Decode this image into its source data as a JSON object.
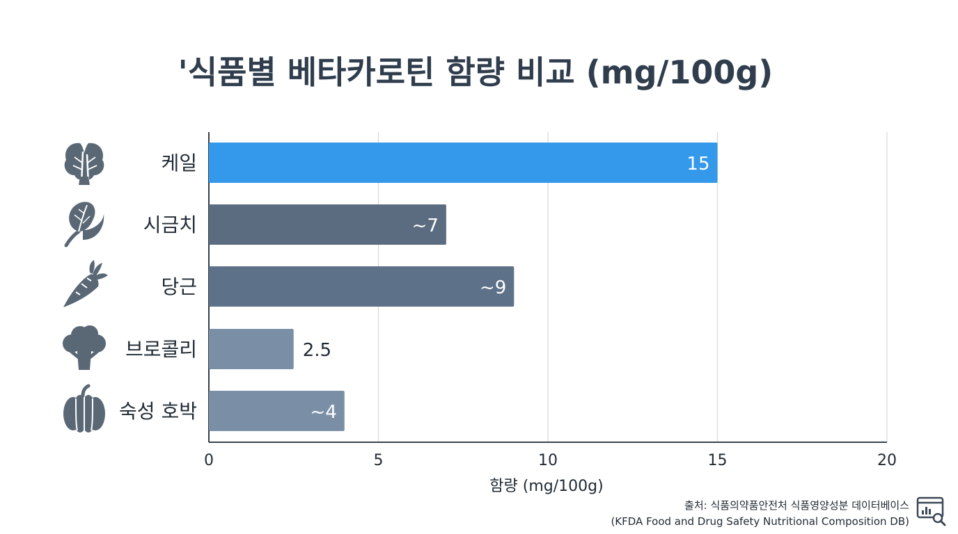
{
  "chart_data": {
    "type": "bar",
    "orientation": "horizontal",
    "title": "'식품별 베타카로틴 함량 비교 (mg/100g)",
    "xlabel": "함량 (mg/100g)",
    "ylabel": "",
    "xlim": [
      0,
      20
    ],
    "xticks": [
      0,
      5,
      10,
      15,
      20
    ],
    "grid": true,
    "categories": [
      "케일",
      "시금치",
      "당근",
      "브로콜리",
      "숙성 호박"
    ],
    "values": [
      15,
      7,
      9,
      2.5,
      4
    ],
    "data_labels": [
      "15",
      "~7",
      "~9",
      "2.5",
      "~4"
    ],
    "bar_colors": [
      "#3498eb",
      "#5b6c80",
      "#5d7188",
      "#7a8fa6",
      "#7a8fa6"
    ],
    "category_icons": [
      "kale-icon",
      "spinach-icon",
      "carrot-icon",
      "broccoli-icon",
      "pumpkin-icon"
    ]
  },
  "source": {
    "line1": "출처: 식품의약품안전처 식품영양성분 데이터베이스",
    "line2": "(KFDA Food and Drug Safety Nutritional Composition DB)",
    "icon": "data-search-icon"
  },
  "colors": {
    "title": "#2f3d4d",
    "icon": "#5a6775",
    "grid": "#d4d7db"
  }
}
